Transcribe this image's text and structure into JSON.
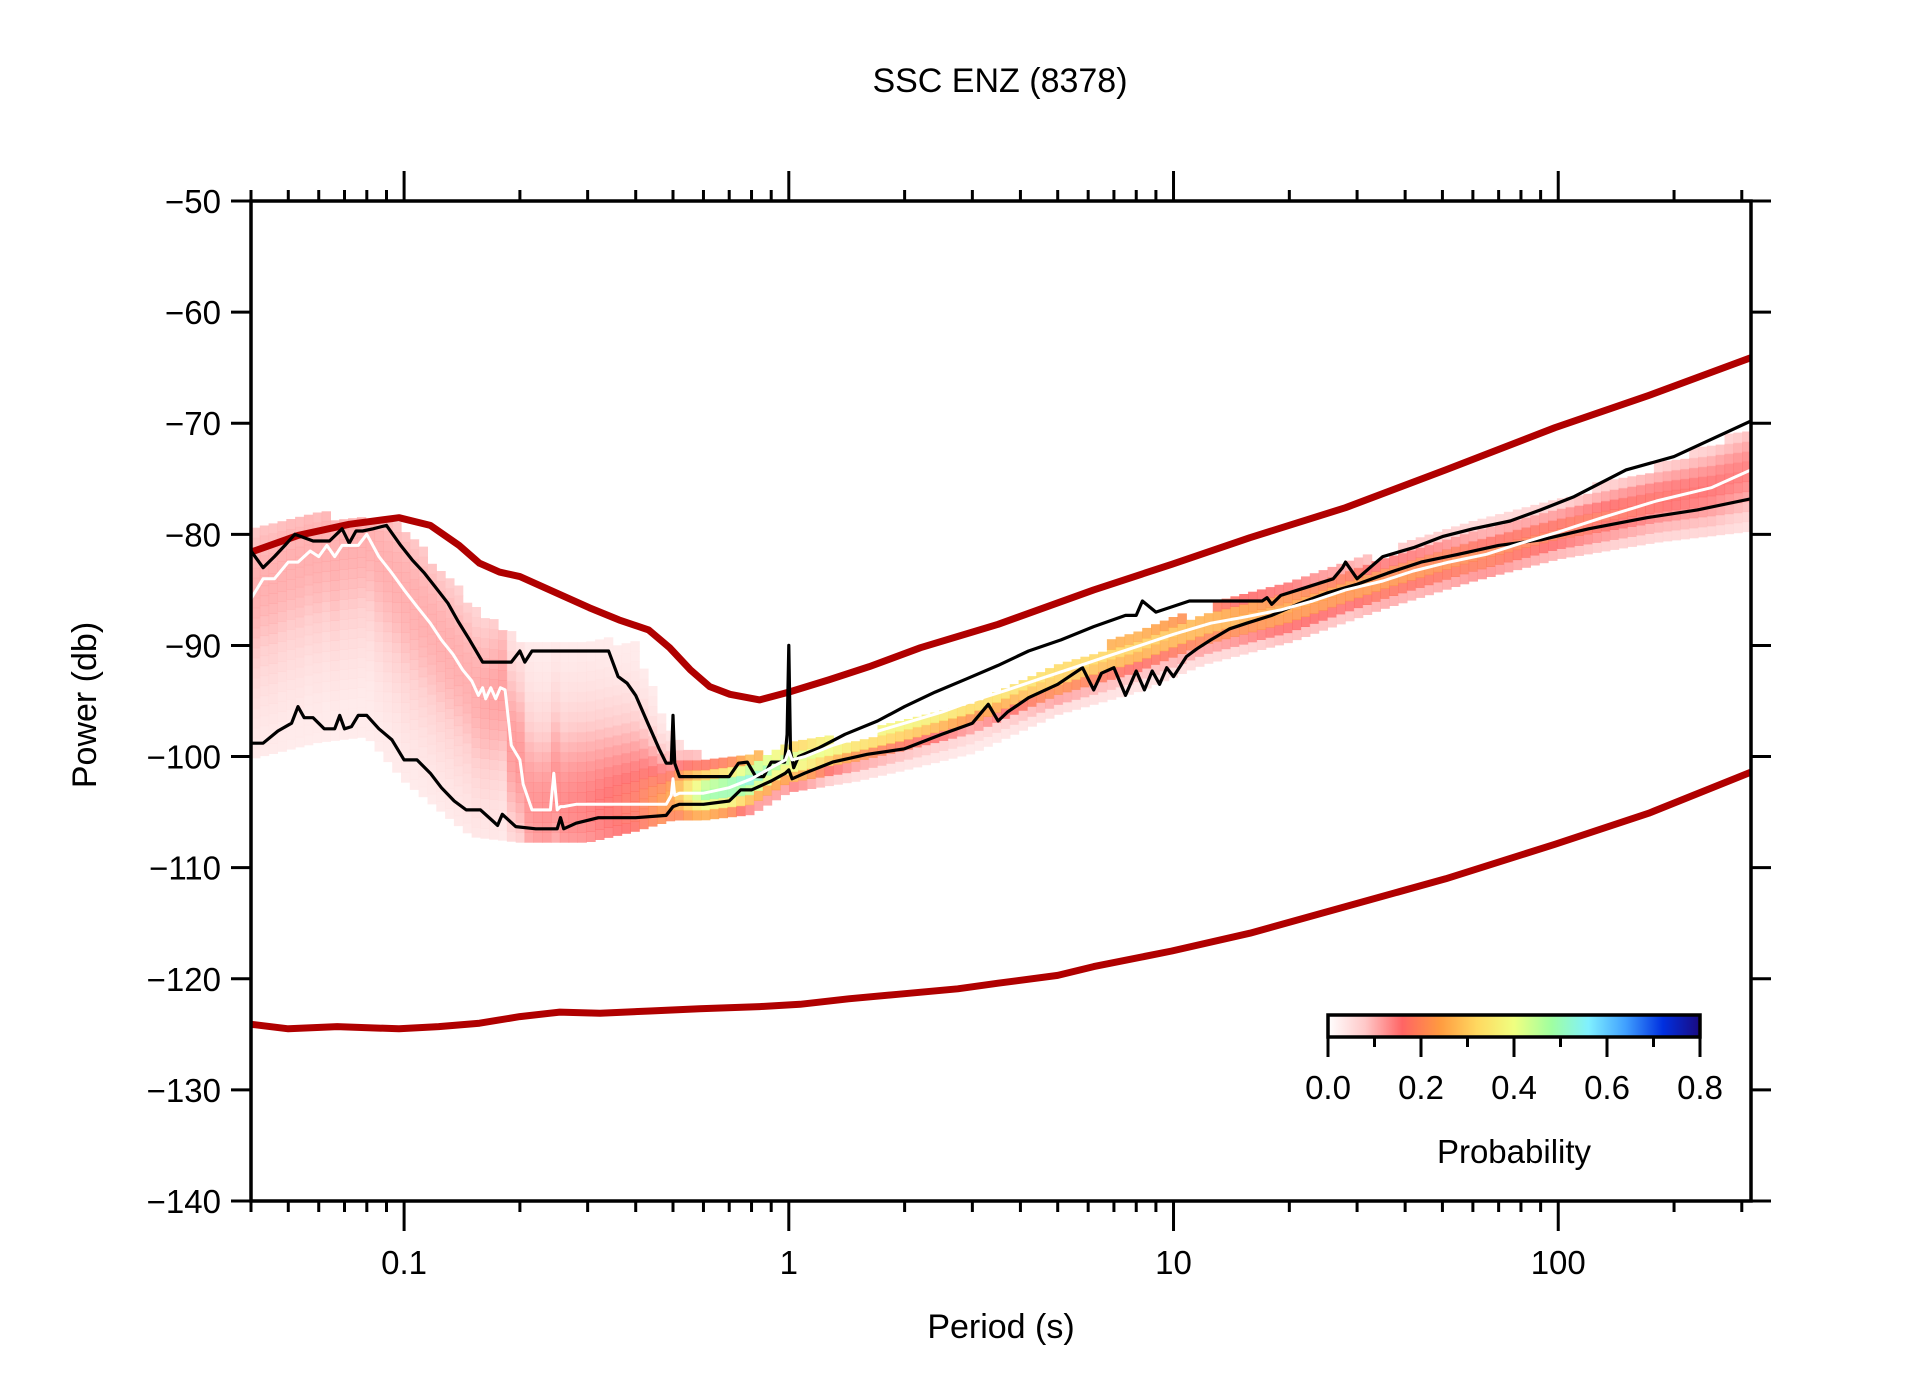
{
  "chart_data": {
    "type": "heatmap",
    "title": "SSC ENZ (8378)",
    "xlabel": "Period (s)",
    "ylabel": "Power (db)",
    "xscale": "log",
    "xlim": [
      0.04,
      317
    ],
    "ylim": [
      -140,
      -50
    ],
    "grid": false,
    "x_ticks": [
      {
        "value": 0.1,
        "label": "0.1"
      },
      {
        "value": 1,
        "label": "1"
      },
      {
        "value": 10,
        "label": "10"
      },
      {
        "value": 100,
        "label": "100"
      }
    ],
    "y_ticks": [
      {
        "value": -50,
        "label": "−50"
      },
      {
        "value": -60,
        "label": "−60"
      },
      {
        "value": -70,
        "label": "−70"
      },
      {
        "value": -80,
        "label": "−80"
      },
      {
        "value": -90,
        "label": "−90"
      },
      {
        "value": -100,
        "label": "−100"
      },
      {
        "value": -110,
        "label": "−110"
      },
      {
        "value": -120,
        "label": "−120"
      },
      {
        "value": -130,
        "label": "−130"
      },
      {
        "value": -140,
        "label": "−140"
      }
    ],
    "colorbar": {
      "label": "Probability",
      "range": [
        0,
        0.8
      ],
      "ticks": [
        {
          "value": 0.0,
          "label": "0.0"
        },
        {
          "value": 0.2,
          "label": "0.2"
        },
        {
          "value": 0.4,
          "label": "0.4"
        },
        {
          "value": 0.6,
          "label": "0.6"
        },
        {
          "value": 0.8,
          "label": "0.8"
        }
      ],
      "minor_ticks": [
        0.1,
        0.3,
        0.5,
        0.7
      ],
      "colors": [
        "#ffffff",
        "#ffc8c8",
        "#ff6464",
        "#ff9a40",
        "#ffd860",
        "#f0ff80",
        "#a0ffa0",
        "#80f0ff",
        "#40a0ff",
        "#0030e0",
        "#1a0a80"
      ],
      "placement": "bottom-right"
    },
    "series": [
      {
        "name": "NHNM",
        "role": "high-noise-model",
        "color": "#b00000",
        "x": [
          0.04,
          0.053,
          0.072,
          0.097,
          0.117,
          0.139,
          0.157,
          0.177,
          0.2,
          0.239,
          0.303,
          0.362,
          0.432,
          0.49,
          0.555,
          0.623,
          0.703,
          0.84,
          1.0,
          1.27,
          1.62,
          2.2,
          3.5,
          6.2,
          9.9,
          15.8,
          28,
          51,
          98,
          172,
          317
        ],
        "y": [
          -81.6,
          -80.1,
          -79.1,
          -78.5,
          -79.2,
          -81.0,
          -82.6,
          -83.4,
          -83.8,
          -85.0,
          -86.6,
          -87.7,
          -88.6,
          -90.2,
          -92.2,
          -93.7,
          -94.4,
          -94.9,
          -94.2,
          -93.1,
          -91.9,
          -90.2,
          -88.1,
          -85.0,
          -82.7,
          -80.3,
          -77.6,
          -74.2,
          -70.4,
          -67.5,
          -64.1
        ]
      },
      {
        "name": "NLNM",
        "role": "low-noise-model",
        "color": "#b00000",
        "x": [
          0.04,
          0.05,
          0.067,
          0.097,
          0.123,
          0.157,
          0.2,
          0.254,
          0.323,
          0.436,
          0.586,
          0.84,
          1.07,
          1.43,
          1.92,
          2.75,
          3.5,
          5.0,
          6.2,
          9.9,
          15.8,
          28,
          51,
          98,
          172,
          317
        ],
        "y": [
          -124.1,
          -124.5,
          -124.3,
          -124.5,
          -124.3,
          -124.0,
          -123.4,
          -123.0,
          -123.1,
          -122.9,
          -122.7,
          -122.5,
          -122.3,
          -121.8,
          -121.4,
          -120.9,
          -120.4,
          -119.7,
          -118.9,
          -117.5,
          -115.9,
          -113.5,
          -111.0,
          -107.9,
          -105.1,
          -101.4
        ]
      },
      {
        "name": "90th percentile",
        "role": "upper-percentile",
        "color": "#000000",
        "x": [
          0.04,
          0.043,
          0.046,
          0.049,
          0.052,
          0.058,
          0.064,
          0.069,
          0.072,
          0.075,
          0.078,
          0.083,
          0.09,
          0.098,
          0.105,
          0.113,
          0.121,
          0.13,
          0.138,
          0.148,
          0.16,
          0.175,
          0.19,
          0.2,
          0.206,
          0.215,
          0.23,
          0.26,
          0.3,
          0.34,
          0.36,
          0.38,
          0.4,
          0.43,
          0.46,
          0.48,
          0.495,
          0.5,
          0.505,
          0.52,
          0.56,
          0.62,
          0.7,
          0.74,
          0.78,
          0.82,
          0.86,
          0.9,
          0.94,
          0.975,
          0.99,
          1.0,
          1.01,
          1.03,
          1.06,
          1.2,
          1.4,
          1.7,
          2.0,
          2.4,
          2.9,
          3.5,
          4.2,
          5.1,
          6.2,
          7.5,
          8.0,
          8.3,
          9.0,
          11.0,
          13.0,
          15.0,
          16.5,
          17.0,
          17.5,
          18.0,
          19.0,
          22.0,
          26.0,
          27.5,
          28.0,
          30.0,
          35.0,
          42.0,
          50.0,
          60.0,
          75.0,
          90.0,
          110.0,
          150.0,
          200.0,
          317.0
        ],
        "y": [
          -81.5,
          -83.0,
          -82.0,
          -81.0,
          -80.0,
          -80.6,
          -80.6,
          -79.5,
          -80.8,
          -79.7,
          -79.7,
          -79.5,
          -79.2,
          -81.0,
          -82.3,
          -83.5,
          -84.8,
          -86.2,
          -87.8,
          -89.5,
          -91.5,
          -91.5,
          -91.5,
          -90.5,
          -91.5,
          -90.5,
          -90.5,
          -90.5,
          -90.5,
          -90.5,
          -92.8,
          -93.4,
          -94.5,
          -97.0,
          -99.3,
          -100.6,
          -100.6,
          -96.3,
          -100.6,
          -101.8,
          -101.8,
          -101.8,
          -101.8,
          -100.6,
          -100.5,
          -101.8,
          -101.8,
          -100.5,
          -100.5,
          -100.5,
          -98.0,
          -90.0,
          -99.5,
          -101.0,
          -100.0,
          -99.2,
          -98.0,
          -96.8,
          -95.5,
          -94.2,
          -93.0,
          -91.8,
          -90.5,
          -89.5,
          -88.3,
          -87.3,
          -87.3,
          -86.0,
          -87.0,
          -86.0,
          -86.0,
          -86.0,
          -86.0,
          -86.0,
          -85.7,
          -86.3,
          -85.5,
          -84.8,
          -84.0,
          -83.0,
          -82.5,
          -84.0,
          -82.0,
          -81.2,
          -80.2,
          -79.5,
          -78.8,
          -77.8,
          -76.6,
          -74.2,
          -73.0,
          -69.8
        ]
      },
      {
        "name": "Mode",
        "role": "mode",
        "color": "#ffffff",
        "x": [
          0.04,
          0.043,
          0.046,
          0.05,
          0.053,
          0.057,
          0.06,
          0.063,
          0.066,
          0.069,
          0.072,
          0.076,
          0.08,
          0.086,
          0.093,
          0.1,
          0.108,
          0.117,
          0.125,
          0.134,
          0.142,
          0.15,
          0.156,
          0.16,
          0.163,
          0.168,
          0.173,
          0.178,
          0.183,
          0.19,
          0.2,
          0.204,
          0.215,
          0.225,
          0.24,
          0.245,
          0.25,
          0.255,
          0.26,
          0.28,
          0.32,
          0.4,
          0.48,
          0.495,
          0.5,
          0.505,
          0.52,
          0.6,
          0.7,
          0.8,
          0.9,
          0.98,
          1.0,
          1.02,
          1.1,
          1.3,
          1.6,
          2.0,
          2.5,
          3.0,
          3.7,
          4.5,
          5.5,
          6.7,
          8.2,
          10.0,
          12.5,
          15.0,
          19.0,
          23.0,
          28.0,
          35.0,
          42.0,
          52.0,
          65.0,
          80.0,
          100.0,
          130.0,
          180.0,
          250.0,
          317.0
        ],
        "y": [
          -85.8,
          -84.0,
          -84.0,
          -82.5,
          -82.5,
          -81.5,
          -82.0,
          -81.0,
          -82.0,
          -81.0,
          -81.0,
          -81.0,
          -80.0,
          -82.0,
          -83.5,
          -85.0,
          -86.5,
          -88.0,
          -89.5,
          -90.8,
          -92.2,
          -93.2,
          -94.5,
          -93.8,
          -94.8,
          -93.8,
          -94.8,
          -93.8,
          -94.0,
          -99.0,
          -100.3,
          -102.5,
          -104.8,
          -104.8,
          -104.8,
          -101.5,
          -104.8,
          -104.5,
          -104.5,
          -104.3,
          -104.3,
          -104.3,
          -104.3,
          -103.5,
          -102.0,
          -103.5,
          -103.3,
          -103.3,
          -102.8,
          -102.0,
          -101.0,
          -100.3,
          -99.5,
          -100.3,
          -100.0,
          -99.0,
          -98.0,
          -97.0,
          -96.0,
          -95.0,
          -94.0,
          -93.0,
          -92.0,
          -91.0,
          -90.0,
          -89.0,
          -88.0,
          -87.5,
          -86.8,
          -86.0,
          -85.0,
          -84.2,
          -83.3,
          -82.5,
          -81.8,
          -80.8,
          -79.8,
          -78.5,
          -77.0,
          -75.8,
          -74.2
        ]
      },
      {
        "name": "10th percentile",
        "role": "lower-percentile",
        "color": "#000000",
        "x": [
          0.04,
          0.043,
          0.047,
          0.051,
          0.053,
          0.055,
          0.058,
          0.062,
          0.066,
          0.068,
          0.07,
          0.073,
          0.076,
          0.08,
          0.086,
          0.093,
          0.1,
          0.108,
          0.117,
          0.125,
          0.135,
          0.145,
          0.158,
          0.17,
          0.175,
          0.18,
          0.195,
          0.22,
          0.25,
          0.255,
          0.26,
          0.28,
          0.32,
          0.4,
          0.48,
          0.5,
          0.52,
          0.6,
          0.7,
          0.75,
          0.8,
          0.9,
          0.98,
          1.0,
          1.02,
          1.1,
          1.3,
          1.6,
          2.0,
          2.5,
          3.0,
          3.3,
          3.5,
          3.7,
          4.2,
          5.0,
          5.8,
          6.2,
          6.5,
          7.0,
          7.5,
          8.0,
          8.4,
          8.8,
          9.2,
          9.6,
          10.0,
          10.8,
          11.5,
          12.5,
          14.0,
          15.5,
          18.0,
          21.0,
          25.0,
          30.0,
          36.0,
          44.0,
          55.0,
          70.0,
          90.0,
          120.0,
          170.0,
          230.0,
          317.0
        ],
        "y": [
          -98.8,
          -98.8,
          -97.7,
          -97.0,
          -95.5,
          -96.5,
          -96.5,
          -97.5,
          -97.5,
          -96.3,
          -97.5,
          -97.3,
          -96.3,
          -96.3,
          -97.5,
          -98.5,
          -100.3,
          -100.3,
          -101.5,
          -102.8,
          -104.0,
          -104.8,
          -104.8,
          -105.8,
          -106.2,
          -105.2,
          -106.3,
          -106.5,
          -106.5,
          -105.5,
          -106.5,
          -106.0,
          -105.5,
          -105.5,
          -105.3,
          -104.5,
          -104.3,
          -104.3,
          -104.0,
          -103.0,
          -103.0,
          -102.2,
          -101.5,
          -101.2,
          -102.0,
          -101.5,
          -100.5,
          -99.8,
          -99.3,
          -98.0,
          -97.0,
          -95.3,
          -96.8,
          -96.0,
          -94.7,
          -93.5,
          -92.0,
          -94.0,
          -92.5,
          -92.0,
          -94.5,
          -92.3,
          -94.0,
          -92.3,
          -93.5,
          -92.0,
          -92.8,
          -91.0,
          -90.3,
          -89.5,
          -88.5,
          -88.0,
          -87.3,
          -86.3,
          -85.3,
          -84.5,
          -83.5,
          -82.5,
          -81.8,
          -81.0,
          -80.5,
          -79.5,
          -78.5,
          -77.8,
          -76.8
        ]
      }
    ],
    "density_band": {
      "description": "Probability density of PSD values; pink-dominated (p<0.15) at short periods, red/orange/yellow/cyan near 0.5–2 s, orange/yellow core along the mode at long periods",
      "x": [
        0.04,
        0.06,
        0.08,
        0.1,
        0.15,
        0.2,
        0.3,
        0.4,
        0.5,
        0.6,
        0.8,
        1.0,
        1.5,
        2,
        3,
        5,
        8,
        12,
        20,
        35,
        60,
        100,
        180,
        317
      ],
      "upper": [
        -81,
        -80,
        -80,
        -81,
        -88,
        -91,
        -91,
        -91.5,
        -100,
        -101.5,
        -101.5,
        -100.5,
        -100,
        -98.5,
        -96.5,
        -93.5,
        -90.5,
        -88.5,
        -85.5,
        -83.5,
        -80.5,
        -78.5,
        -75.5,
        -72
      ],
      "lower": [
        -99,
        -97.5,
        -97,
        -101,
        -106,
        -106.5,
        -106.5,
        -105.5,
        -104.5,
        -104.5,
        -104,
        -102,
        -101,
        -100,
        -98.5,
        -95,
        -93,
        -90.5,
        -88.5,
        -85.5,
        -83,
        -81,
        -79.5,
        -78.5
      ],
      "peak_probability": [
        0.08,
        0.08,
        0.08,
        0.08,
        0.08,
        0.1,
        0.12,
        0.15,
        0.22,
        0.45,
        0.5,
        0.4,
        0.35,
        0.35,
        0.32,
        0.3,
        0.28,
        0.25,
        0.22,
        0.2,
        0.18,
        0.16,
        0.14,
        0.12
      ]
    }
  }
}
